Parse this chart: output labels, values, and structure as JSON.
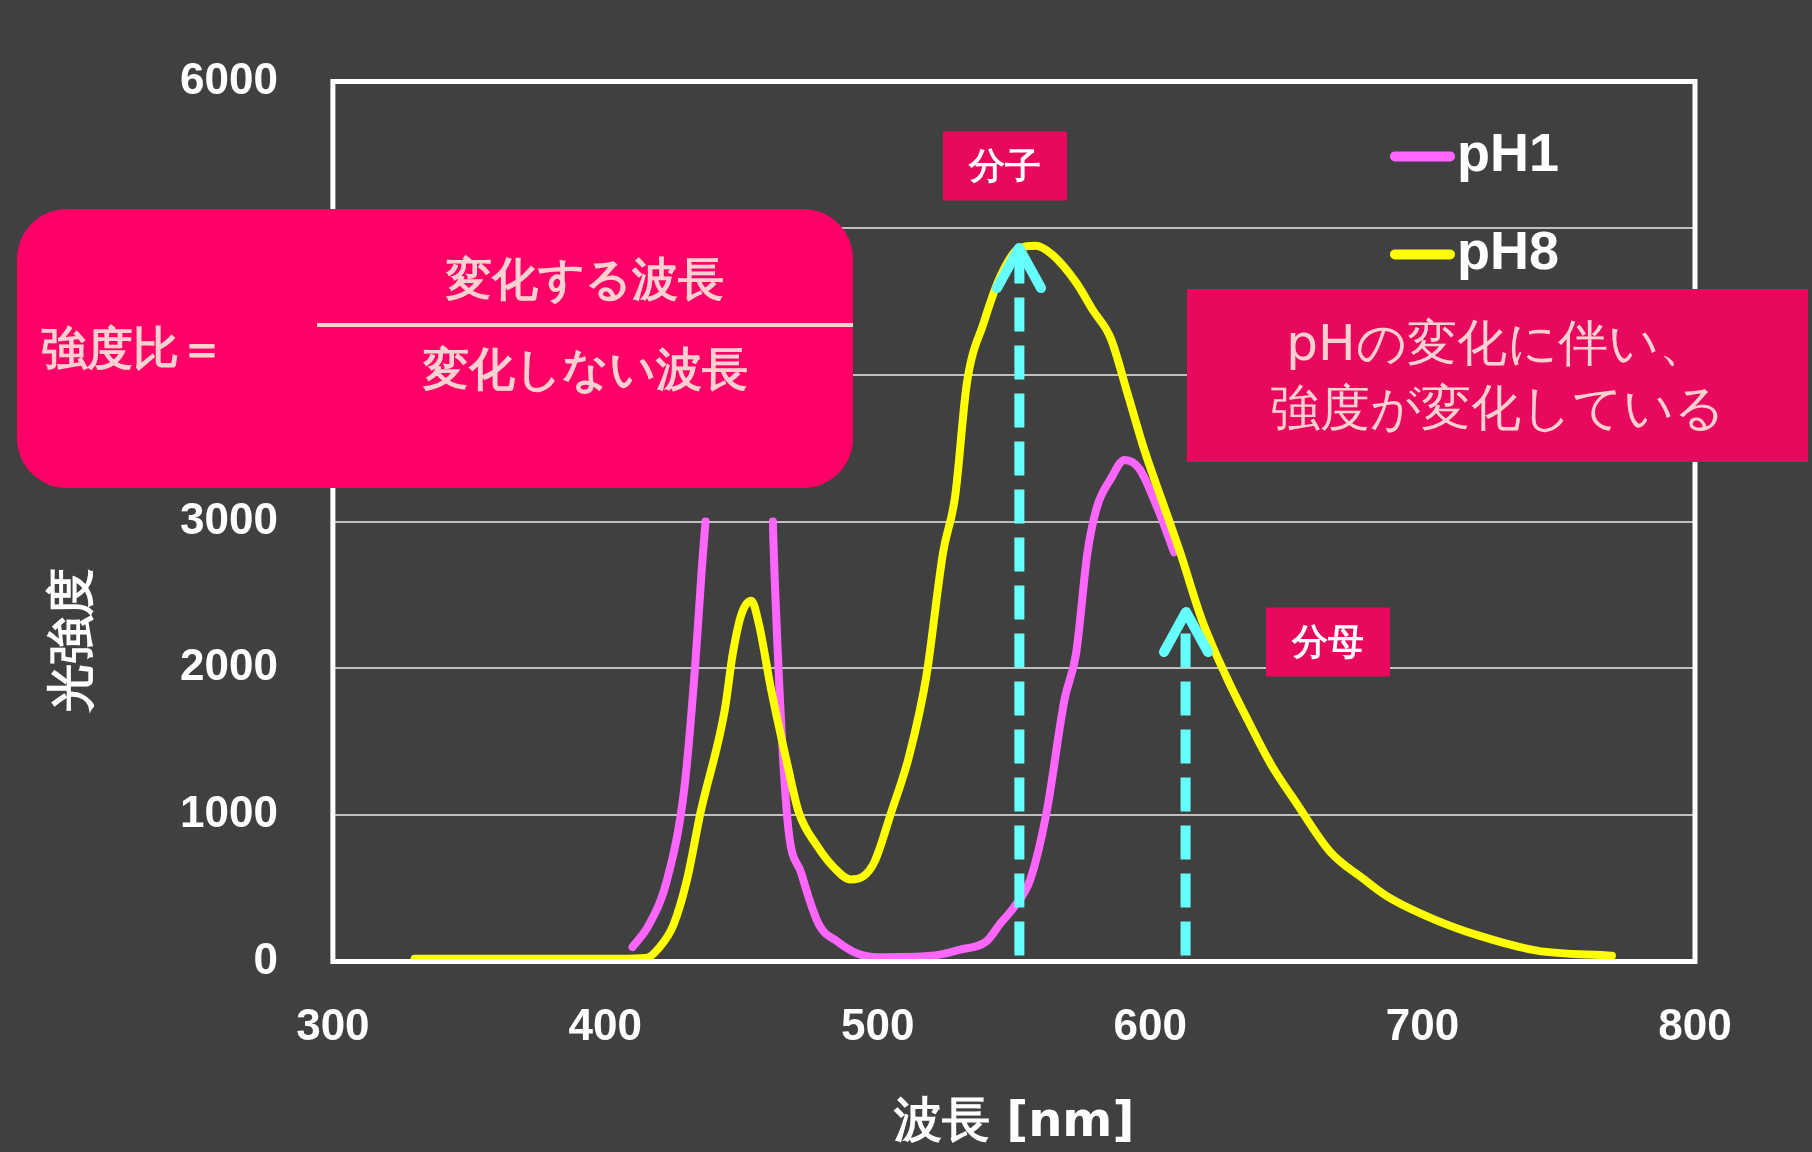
{
  "chart_data": {
    "type": "line",
    "xlabel": "波長 [nm]",
    "ylabel": "光強度",
    "xlim": [
      300,
      800
    ],
    "xticks": [
      300,
      400,
      500,
      600,
      700,
      800
    ],
    "ylim": [
      0,
      6000
    ],
    "yticks": [
      0,
      1000,
      2000,
      3000,
      {
        "value": 4000,
        "label": null
      },
      {
        "value": 5000,
        "label": null
      },
      6000
    ],
    "grid": "y",
    "legend": "top right",
    "marker": "none",
    "line_style": "solid",
    "series": [
      {
        "name": "pH1",
        "color": "#ff66ff",
        "x": [
          410,
          416,
          422.7,
          429,
          433,
          435.5,
          436.8,
          443,
          461.5,
          462,
          466.7,
          472,
          478.5,
          485,
          492.5,
          500,
          520,
          530,
          540,
          545,
          550,
          556,
          562,
          568.6,
          572.8,
          577,
          580.5,
          585.5,
          590.6,
          596,
          602.5,
          608.8
        ],
        "values": [
          100,
          250,
          560,
          1180,
          2020,
          2700,
          3000,
          null,
          3000,
          2700,
          1000,
          600,
          250,
          140,
          55,
          30,
          40,
          80,
          140,
          260,
          370,
          560,
          1020,
          1790,
          2100,
          2790,
          3100,
          3290,
          3420,
          3360,
          3100,
          2790
        ]
      },
      {
        "name": "pH8",
        "color": "#ffff00",
        "x": [
          330,
          360,
          405,
          415,
          420,
          425,
          430,
          435,
          443.8,
          446.8,
          450,
          453.6,
          456.5,
          460.7,
          467,
          471,
          477.7,
          484,
          490,
          494.6,
          498.8,
          505,
          511.5,
          517.8,
          524,
          528.4,
          532.7,
          539,
          545,
          551.7,
          558,
          564,
          572.8,
          579,
          585.5,
          591.9,
          598,
          604.6,
          611,
          619,
          628,
          636,
          644.8,
          653,
          666,
          678.6,
          687,
          704,
          721,
          742,
          769.5
        ],
        "values": [
          20,
          20,
          20,
          25,
          100,
          250,
          560,
          1020,
          1710,
          2100,
          2370,
          2460,
          2290,
          1870,
          1330,
          1020,
          790,
          640,
          560,
          580,
          680,
          1020,
          1400,
          1940,
          2790,
          3170,
          3940,
          4360,
          4670,
          4860,
          4880,
          4820,
          4630,
          4440,
          4250,
          3860,
          3480,
          3130,
          2790,
          2330,
          1940,
          1640,
          1330,
          1100,
          750,
          560,
          445,
          290,
          175,
          75,
          40
        ]
      }
    ],
    "ref_lines": [
      {
        "axis": "x",
        "value": 552,
        "label": "分子",
        "color": "#66ffff",
        "line_style": "dashed"
      },
      {
        "axis": "x",
        "value": 613,
        "label": "分母",
        "color": "#66ffff",
        "line_style": "dashed"
      }
    ],
    "annotations": [
      "強度比＝",
      "変化する波長",
      "変化しない波長",
      "pHの変化に伴い、",
      "強度が変化している"
    ]
  }
}
